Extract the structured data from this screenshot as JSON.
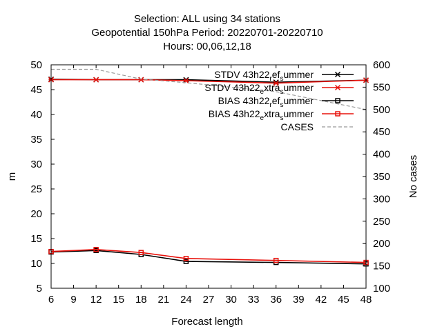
{
  "chart_data": {
    "type": "line",
    "title_lines": [
      "Selection: ALL using    34 stations",
      "Geopotential 150hPa   Period: 20220701-20220710",
      "Hours:  00,06,12,18"
    ],
    "xlabel": "Forecast length",
    "ylabel": "m",
    "y2label": "No cases",
    "xlim": [
      6,
      48
    ],
    "ylim": [
      5,
      50
    ],
    "y2lim": [
      100,
      600
    ],
    "xticks": [
      6,
      9,
      12,
      15,
      18,
      21,
      24,
      27,
      30,
      33,
      36,
      39,
      42,
      45,
      48
    ],
    "yticks": [
      5,
      10,
      15,
      20,
      25,
      30,
      35,
      40,
      45,
      50
    ],
    "y2ticks": [
      100,
      150,
      200,
      250,
      300,
      350,
      400,
      450,
      500,
      550,
      600
    ],
    "grid": false,
    "legend_position": "top-right",
    "x": [
      6,
      12,
      18,
      24,
      36,
      48
    ],
    "series": [
      {
        "name": "STDV 43h22_ref_summer",
        "legend_main": "STDV 43h22",
        "legend_sub1": "r",
        "legend_mid": "ef",
        "legend_sub2": "s",
        "legend_end": "ummer",
        "axis": "y",
        "color": "#000000",
        "marker": "star",
        "values": [
          47.1,
          47.0,
          47.0,
          47.0,
          46.5,
          46.9
        ]
      },
      {
        "name": "STDV 43h22_extra_summer",
        "legend_main": "STDV 43h22",
        "legend_sub1": "e",
        "legend_mid": "xtra",
        "legend_sub2": "s",
        "legend_end": "ummer",
        "axis": "y",
        "color": "#e8120c",
        "marker": "star",
        "values": [
          47.0,
          47.0,
          47.0,
          46.8,
          46.3,
          46.9
        ]
      },
      {
        "name": "BIAS 43h22_ref_summer",
        "legend_main": "BIAS 43h22",
        "legend_sub1": "r",
        "legend_mid": "ef",
        "legend_sub2": "s",
        "legend_end": "ummer",
        "axis": "y",
        "color": "#000000",
        "marker": "square",
        "values": [
          12.3,
          12.6,
          11.8,
          10.4,
          10.2,
          9.9
        ]
      },
      {
        "name": "BIAS 43h22_extra_summer",
        "legend_main": "BIAS 43h22",
        "legend_sub1": "e",
        "legend_mid": "xtra",
        "legend_sub2": "s",
        "legend_end": "ummer",
        "axis": "y",
        "color": "#e8120c",
        "marker": "square",
        "values": [
          12.4,
          12.8,
          12.2,
          11.0,
          10.6,
          10.2
        ]
      },
      {
        "name": "CASES",
        "legend_main": "CASES",
        "axis": "y2",
        "color": "#999999",
        "marker": "none",
        "dashed": true,
        "values": [
          590,
          590,
          568,
          560,
          540,
          500
        ]
      }
    ]
  }
}
